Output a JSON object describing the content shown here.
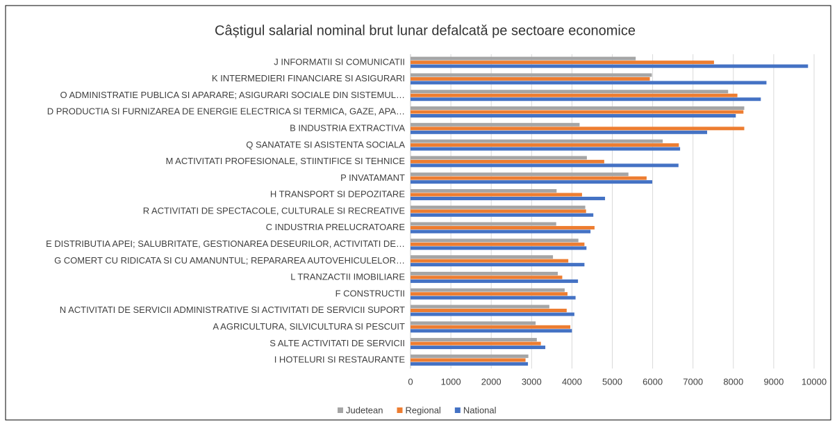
{
  "chart_data": {
    "type": "bar",
    "horizontal": true,
    "title": "Câștigul salarial nominal brut lunar defalcată pe sectoare economice",
    "categories": [
      "J INFORMATII SI COMUNICATII",
      "K INTERMEDIERI FINANCIARE SI ASIGURARI",
      "O ADMINISTRATIE PUBLICA SI APARARE; ASIGURARI SOCIALE DIN SISTEMUL…",
      "D PRODUCTIA SI FURNIZAREA DE ENERGIE ELECTRICA SI TERMICA, GAZE, APA…",
      "B INDUSTRIA EXTRACTIVA",
      "Q SANATATE SI ASISTENTA SOCIALA",
      "M ACTIVITATI PROFESIONALE, STIINTIFICE SI TEHNICE",
      "P INVATAMANT",
      "H TRANSPORT SI DEPOZITARE",
      "R ACTIVITATI DE SPECTACOLE, CULTURALE SI RECREATIVE",
      "C INDUSTRIA PRELUCRATOARE",
      "E DISTRIBUTIA APEI; SALUBRITATE, GESTIONAREA DESEURILOR, ACTIVITATI DE…",
      "G COMERT CU RIDICATA SI CU AMANUNTUL; REPARAREA AUTOVEHICULELOR…",
      "L TRANZACTII IMOBILIARE",
      "F CONSTRUCTII",
      "N ACTIVITATI DE SERVICII ADMINISTRATIVE SI ACTIVITATI DE SERVICII SUPORT",
      "A AGRICULTURA, SILVICULTURA SI PESCUIT",
      "S ALTE ACTIVITATI DE SERVICII",
      "I HOTELURI SI RESTAURANTE"
    ],
    "series": [
      {
        "name": "Judetean",
        "color": "#a5a5a5",
        "values": [
          5580,
          5980,
          7870,
          8270,
          4190,
          6250,
          4370,
          5400,
          3620,
          4330,
          3610,
          4160,
          3530,
          3650,
          3820,
          3440,
          3100,
          3130,
          2920
        ]
      },
      {
        "name": "Regional",
        "color": "#ed7d31",
        "values": [
          7520,
          5930,
          8100,
          8250,
          8270,
          6650,
          4800,
          5850,
          4250,
          4350,
          4560,
          4310,
          3910,
          3760,
          3890,
          3870,
          3960,
          3230,
          2850
        ]
      },
      {
        "name": "National",
        "color": "#4472c4",
        "values": [
          9850,
          8820,
          8680,
          8060,
          7350,
          6680,
          6640,
          5990,
          4820,
          4530,
          4460,
          4360,
          4310,
          4150,
          4090,
          4060,
          4000,
          3340,
          2910
        ]
      }
    ],
    "xlim": [
      0,
      10000
    ],
    "xticks": [
      0,
      1000,
      2000,
      3000,
      4000,
      5000,
      6000,
      7000,
      8000,
      9000,
      10000
    ],
    "grid": true,
    "legend": "bottom"
  }
}
